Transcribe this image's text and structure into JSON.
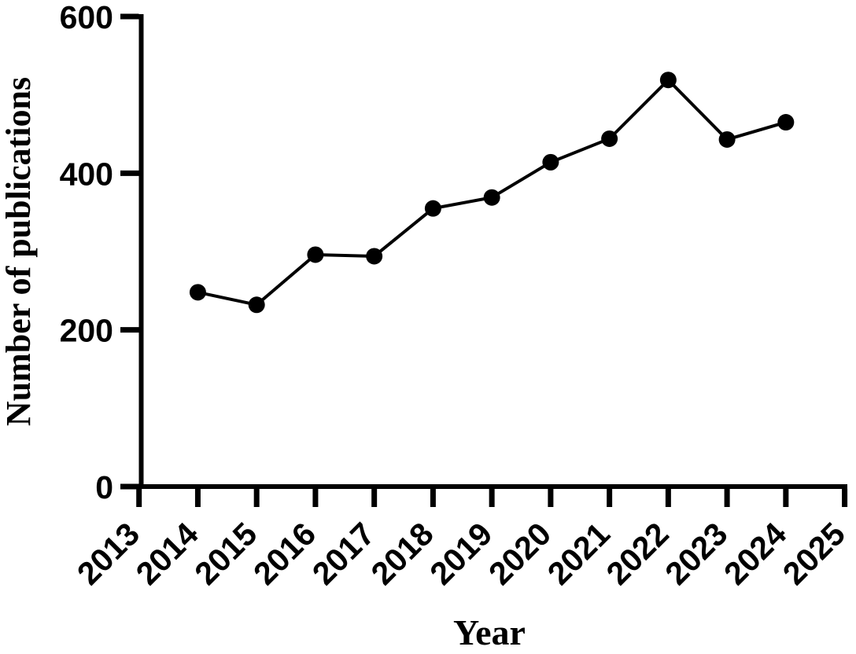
{
  "chart_data": {
    "type": "line",
    "title": "",
    "xlabel": "Year",
    "ylabel": "Number of publications",
    "x": [
      2014,
      2015,
      2016,
      2017,
      2018,
      2019,
      2020,
      2021,
      2022,
      2023,
      2024
    ],
    "series": [
      {
        "name": "Number of publications",
        "values": [
          248,
          232,
          296,
          294,
          355,
          369,
          414,
          444,
          519,
          443,
          465
        ]
      }
    ],
    "xlim": [
      2013,
      2025
    ],
    "ylim": [
      0,
      600
    ],
    "xticks": [
      2013,
      2014,
      2015,
      2016,
      2017,
      2018,
      2019,
      2020,
      2021,
      2022,
      2023,
      2024,
      2025
    ],
    "yticks": [
      0,
      200,
      400,
      600
    ],
    "x_tick_rotation_deg": 45,
    "grid": false,
    "legend_position": "none",
    "marker": "circle",
    "colors": {
      "axis": "#000000",
      "series": "#000000",
      "background": "#ffffff",
      "text": "#000000"
    }
  }
}
